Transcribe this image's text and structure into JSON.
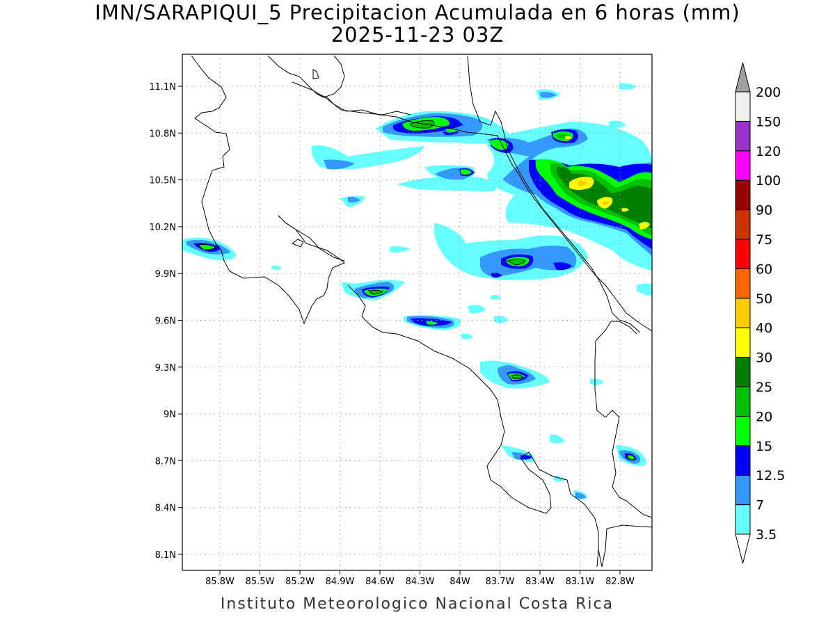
{
  "title": {
    "line1": "IMN/SARAPIQUI_5 Precipitacion Acumulada en 6 horas (mm)",
    "line2": "2025-11-23 03Z"
  },
  "credit": "Instituto Meteorologico Nacional Costa Rica",
  "map": {
    "lon_range": [
      -86.0,
      -83.0
    ],
    "lon_ticks": [
      {
        "value": -85.8,
        "label": "85.8W"
      },
      {
        "value": -85.5,
        "label": "85.5W"
      },
      {
        "value": -85.2,
        "label": "85.2W"
      },
      {
        "value": -84.9,
        "label": "84.9W"
      },
      {
        "value": -84.6,
        "label": "84.6W"
      },
      {
        "value": -84.3,
        "label": "84.3W"
      },
      {
        "value": -84.0,
        "label": "84W"
      },
      {
        "value": -83.7,
        "label": "83.7W"
      },
      {
        "value": -83.4,
        "label": "83.4W"
      },
      {
        "value": -83.1,
        "label": "83.1W"
      },
      {
        "value": -82.8,
        "label": "82.8W"
      }
    ],
    "lat_ticks": [
      {
        "value": 11.1,
        "label": "11.1N"
      },
      {
        "value": 10.8,
        "label": "10.8N"
      },
      {
        "value": 10.5,
        "label": "10.5N"
      },
      {
        "value": 10.2,
        "label": "10.2N"
      },
      {
        "value": 9.9,
        "label": "9.9N"
      },
      {
        "value": 9.6,
        "label": "9.6N"
      },
      {
        "value": 9.3,
        "label": "9.3N"
      },
      {
        "value": 9.0,
        "label": "9N"
      },
      {
        "value": 8.7,
        "label": "8.7N"
      },
      {
        "value": 8.4,
        "label": "8.4N"
      },
      {
        "value": 8.1,
        "label": "8.1N"
      }
    ],
    "grid": "dotted"
  },
  "colorbar": {
    "levels": [
      {
        "label": "3.5",
        "color": "#66ffff"
      },
      {
        "label": "7",
        "color": "#3399ff"
      },
      {
        "label": "12.5",
        "color": "#0000ff"
      },
      {
        "label": "15",
        "color": "#00ff00"
      },
      {
        "label": "20",
        "color": "#00c000"
      },
      {
        "label": "25",
        "color": "#008000"
      },
      {
        "label": "30",
        "color": "#ffff00"
      },
      {
        "label": "40",
        "color": "#ffcc00"
      },
      {
        "label": "50",
        "color": "#ff6600"
      },
      {
        "label": "60",
        "color": "#ff0000"
      },
      {
        "label": "75",
        "color": "#cc3300"
      },
      {
        "label": "90",
        "color": "#990000"
      },
      {
        "label": "100",
        "color": "#ff00ff"
      },
      {
        "label": "120",
        "color": "#9933cc"
      },
      {
        "label": "150",
        "color": "#f0f0f0"
      },
      {
        "label": "200",
        "color": "#a0a0a0"
      }
    ],
    "top_arrow_color": "#a0a0a0",
    "bottom_arrow_color": "#ffffff"
  }
}
